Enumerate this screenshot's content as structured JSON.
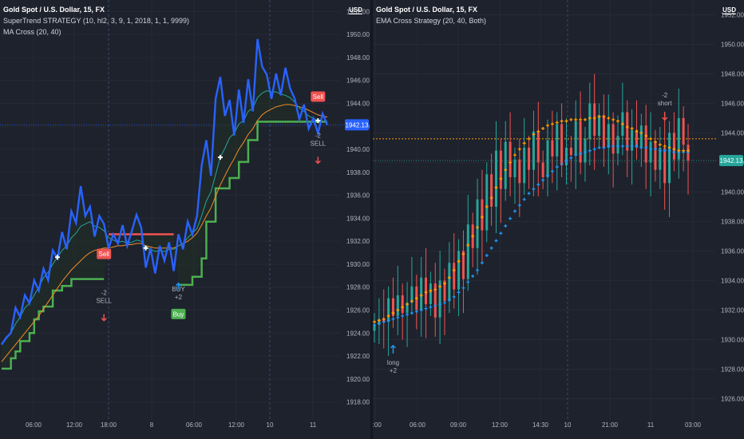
{
  "colors": {
    "background": "#1e222d",
    "grid": "#262a35",
    "text": "#b2b5be",
    "price_line": "#1e88e5",
    "candle_up": "#26a69a",
    "candle_down": "#ef5350",
    "supertrend_up": "#4caf50",
    "supertrend_down": "#ef5350",
    "supertrend_fill": "#203025",
    "price_blue": "#2962ff",
    "ma_fast": "#26a69a",
    "ma_slow": "#f28c28",
    "ema_fast": "#ff9800",
    "ema_slow": "#2196f3"
  },
  "left": {
    "title": "Gold Spot / U.S. Dollar, 15, FX",
    "indicator1": "SuperTrend STRATEGY (10, hl2, 3, 9, 1, 2018, 1, 1, 9999)",
    "indicator2": "MA Cross (20, 40)",
    "currency": "USD"
  },
  "right": {
    "title": "Gold Spot / U.S. Dollar, 15, FX",
    "indicator1": "EMA Cross Strategy (20, 40, Both)",
    "currency": "USD"
  },
  "chart_data": [
    {
      "type": "line",
      "title": "Gold Spot / U.S. Dollar, 15, FX",
      "ylim": [
        1917,
        1953
      ],
      "y_ticks": [
        1918,
        1920,
        1922,
        1924,
        1926,
        1928,
        1930,
        1932,
        1934,
        1936,
        1938,
        1940,
        1942,
        1944,
        1946,
        1948,
        1950,
        1952
      ],
      "x_ticks": [
        "06:00",
        "12:00",
        "18:00",
        "8",
        "06:00",
        "12:00",
        "10",
        "11"
      ],
      "last_price": "1942.13",
      "grid": true,
      "series": [
        {
          "name": "Gold Spot / U.S. Dollar",
          "kind": "price",
          "values": [
            1923.0,
            1923.6,
            1924.0,
            1926.2,
            1925.4,
            1927.3,
            1926.6,
            1928.6,
            1927.7,
            1929.6,
            1928.6,
            1931.2,
            1930.5,
            1932.8,
            1931.3,
            1934.6,
            1933.6,
            1936.8,
            1934.2,
            1935.0,
            1932.4,
            1934.2,
            1933.5,
            1931.4,
            1932.6,
            1931.8,
            1933.4,
            1931.6,
            1932.9,
            1934.3,
            1933.2,
            1929.7,
            1931.4,
            1929.2,
            1931.6,
            1930.3,
            1931.9,
            1929.4,
            1932.6,
            1931.3,
            1933.7,
            1932.6,
            1934.2,
            1938.6,
            1940.8,
            1937.7,
            1944.4,
            1946.3,
            1942.9,
            1944.3,
            1941.2,
            1945.2,
            1942.3,
            1946.1,
            1943.3,
            1949.6,
            1947.2,
            1946.5,
            1944.4,
            1946.6,
            1944.7,
            1947.1,
            1945.3,
            1944.4,
            1942.6,
            1943.9,
            1941.8,
            1942.7,
            1941.4,
            1943.1,
            1942.13
          ]
        },
        {
          "name": "SuperTrend",
          "kind": "step",
          "values": [
            1920.9,
            1920.9,
            1921.8,
            1922.4,
            1923.3,
            1923.3,
            1924.0,
            1925.2,
            1925.9,
            1926.3,
            1926.3,
            1927.7,
            1927.7,
            1928.1,
            1928.1,
            1928.7,
            1928.7,
            1928.7,
            1928.7,
            1928.7,
            1928.7,
            1928.7,
            1928.7,
            1932.6,
            1932.6,
            1932.6,
            1932.6,
            1932.6,
            1932.6,
            1932.6,
            1932.6,
            1932.6,
            1932.6,
            1932.6,
            1932.6,
            1932.6,
            1932.6,
            1932.6,
            1928.2,
            1928.2,
            1928.2,
            1928.9,
            1928.9,
            1930.5,
            1933.7,
            1933.7,
            1936.6,
            1936.6,
            1936.6,
            1937.5,
            1937.5,
            1938.9,
            1938.9,
            1940.8,
            1940.8,
            1942.4,
            1942.4,
            1942.4,
            1942.4,
            1942.4,
            1942.4,
            1942.4,
            1942.4,
            1942.4,
            1942.4,
            1942.4,
            1942.4,
            1942.4,
            1942.4,
            1942.4,
            1942.4
          ]
        },
        {
          "name": "MA 20",
          "kind": "ma",
          "values": [
            1923.0,
            1923.5,
            1924.0,
            1924.8,
            1925.4,
            1926.2,
            1926.6,
            1927.3,
            1928.0,
            1928.8,
            1929.3,
            1930.0,
            1930.6,
            1931.2,
            1931.6,
            1932.3,
            1932.7,
            1933.3,
            1933.5,
            1933.7,
            1933.3,
            1933.2,
            1932.9,
            1932.3,
            1932.1,
            1931.9,
            1932.0,
            1931.8,
            1931.9,
            1932.1,
            1932.0,
            1931.4,
            1931.3,
            1931.1,
            1931.2,
            1931.1,
            1931.3,
            1931.3,
            1931.6,
            1931.8,
            1932.3,
            1932.7,
            1933.1,
            1934.2,
            1935.5,
            1936.3,
            1937.8,
            1939.3,
            1940.1,
            1941.0,
            1941.4,
            1942.2,
            1942.5,
            1943.3,
            1943.6,
            1944.5,
            1944.9,
            1945.1,
            1945.0,
            1945.0,
            1944.8,
            1944.7,
            1944.5,
            1944.1,
            1943.6,
            1943.3,
            1942.9,
            1942.7,
            1942.5,
            1942.4,
            1942.3
          ]
        },
        {
          "name": "MA 40",
          "kind": "ma",
          "values": [
            1921.5,
            1922.0,
            1922.5,
            1923.0,
            1923.5,
            1924.0,
            1924.5,
            1925.0,
            1925.5,
            1926.1,
            1926.7,
            1927.3,
            1927.9,
            1928.5,
            1929.0,
            1929.5,
            1929.9,
            1930.3,
            1930.7,
            1931.0,
            1931.2,
            1931.3,
            1931.4,
            1931.4,
            1931.5,
            1931.6,
            1931.6,
            1931.7,
            1931.7,
            1931.8,
            1931.8,
            1931.6,
            1931.5,
            1931.4,
            1931.4,
            1931.4,
            1931.4,
            1931.4,
            1931.6,
            1931.8,
            1932.0,
            1932.3,
            1932.7,
            1933.4,
            1934.2,
            1934.9,
            1935.9,
            1936.9,
            1937.7,
            1938.5,
            1939.2,
            1940.0,
            1940.6,
            1941.3,
            1941.8,
            1942.5,
            1943.0,
            1943.3,
            1943.5,
            1943.7,
            1943.8,
            1943.9,
            1943.9,
            1943.8,
            1943.7,
            1943.6,
            1943.4,
            1943.2,
            1943.0,
            1942.9,
            1942.8
          ]
        }
      ],
      "signals": [
        {
          "index": 22,
          "label": "Sell",
          "text": "-2\nSELL",
          "side": "sell"
        },
        {
          "index": 38,
          "label": "Buy",
          "text": "BUY\n+2",
          "side": "buy"
        },
        {
          "index": 68,
          "label": "Sell",
          "text": "-2\nSELL",
          "side": "sell"
        }
      ]
    },
    {
      "type": "candlestick",
      "title": "Gold Spot / U.S. Dollar, 15, FX",
      "ylim": [
        1925,
        1953
      ],
      "y_ticks": [
        1926,
        1928,
        1930,
        1932,
        1934,
        1936,
        1938,
        1940,
        1942,
        1944,
        1946,
        1948,
        1950,
        1952
      ],
      "x_ticks": [
        "3:00",
        "06:00",
        "09:00",
        "12:00",
        "14:30",
        "10",
        "21:00",
        "11",
        "03:00"
      ],
      "last_price": "1942.13",
      "series": [
        {
          "name": "Close",
          "kind": "close",
          "values": [
            1931.0,
            1931.4,
            1931.2,
            1932.8,
            1931.6,
            1933.0,
            1931.8,
            1932.5,
            1933.6,
            1932.0,
            1934.2,
            1932.4,
            1933.8,
            1931.5,
            1934.0,
            1932.6,
            1935.2,
            1933.4,
            1936.0,
            1934.1,
            1937.8,
            1936.2,
            1939.5,
            1937.4,
            1941.2,
            1939.0,
            1942.8,
            1940.2,
            1943.4,
            1941.0,
            1942.2,
            1940.6,
            1943.0,
            1941.5,
            1944.1,
            1942.0,
            1941.0,
            1943.5,
            1942.4,
            1944.6,
            1941.8,
            1943.0,
            1942.5,
            1944.8,
            1942.0,
            1943.6,
            1946.0,
            1943.8,
            1945.2,
            1943.0,
            1944.6,
            1942.6,
            1943.8,
            1945.4,
            1942.8,
            1944.2,
            1943.0,
            1944.5,
            1942.0,
            1943.4,
            1941.5,
            1943.0,
            1940.6,
            1944.0,
            1942.2,
            1945.0,
            1943.2,
            1942.13
          ]
        },
        {
          "name": "EMA 20",
          "kind": "ema",
          "values": [
            1931.2,
            1931.3,
            1931.4,
            1931.6,
            1931.8,
            1932.0,
            1932.2,
            1932.4,
            1932.6,
            1932.8,
            1933.0,
            1933.2,
            1933.3,
            1933.4,
            1933.6,
            1933.8,
            1934.2,
            1934.7,
            1935.3,
            1935.8,
            1936.4,
            1937.0,
            1937.6,
            1938.3,
            1939.0,
            1939.6,
            1940.3,
            1940.9,
            1941.5,
            1942.0,
            1942.5,
            1942.9,
            1943.3,
            1943.6,
            1943.9,
            1944.1,
            1944.3,
            1944.5,
            1944.6,
            1944.7,
            1944.8,
            1944.8,
            1944.9,
            1944.9,
            1944.9,
            1944.9,
            1945.0,
            1945.0,
            1945.1,
            1945.1,
            1945.0,
            1944.9,
            1944.8,
            1944.6,
            1944.4,
            1944.3,
            1944.1,
            1944.0,
            1943.8,
            1943.6,
            1943.4,
            1943.2,
            1943.1,
            1943.0,
            1942.9,
            1942.8,
            1942.8,
            1942.8
          ]
        },
        {
          "name": "EMA 40",
          "kind": "ema",
          "values": [
            1931.0,
            1931.1,
            1931.2,
            1931.3,
            1931.4,
            1931.5,
            1931.6,
            1931.7,
            1931.8,
            1931.9,
            1932.0,
            1932.1,
            1932.2,
            1932.3,
            1932.4,
            1932.5,
            1932.7,
            1932.9,
            1933.2,
            1933.5,
            1933.9,
            1934.3,
            1934.7,
            1935.2,
            1935.7,
            1936.2,
            1936.7,
            1937.2,
            1937.7,
            1938.2,
            1938.7,
            1939.1,
            1939.5,
            1939.9,
            1940.2,
            1940.5,
            1940.8,
            1941.1,
            1941.4,
            1941.7,
            1941.9,
            1942.1,
            1942.3,
            1942.5,
            1942.6,
            1942.7,
            1942.8,
            1942.9,
            1943.0,
            1943.0,
            1943.1,
            1943.1,
            1943.1,
            1943.1,
            1943.1,
            1943.1,
            1943.1,
            1943.0,
            1943.0,
            1942.9,
            1942.9,
            1942.8,
            1942.8,
            1942.8,
            1942.7,
            1942.7,
            1942.7,
            1942.7
          ]
        }
      ],
      "horizontal_level": 1943.6,
      "signals": [
        {
          "index": 4,
          "text": "long\n+2",
          "side": "buy"
        },
        {
          "index": 62,
          "text": "-2\nshort",
          "side": "sell"
        }
      ]
    }
  ]
}
